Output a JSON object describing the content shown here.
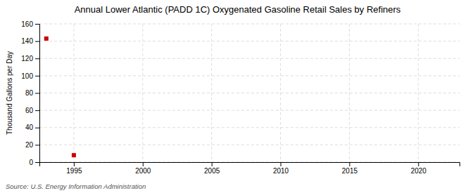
{
  "chart_data": {
    "type": "scatter",
    "title": "Annual Lower Atlantic (PADD 1C) Oxygenated Gasoline Retail Sales by Refiners",
    "ylabel": "Thousand Gallons per Day",
    "annotation": "Source: U.S. Energy Information Administration",
    "x": [
      1993,
      1995
    ],
    "values": [
      143,
      8
    ],
    "color": "#cc0000",
    "marker": "square",
    "xlim": [
      1992.5,
      2023
    ],
    "ylim": [
      0,
      160
    ],
    "xticks": [
      1995,
      2000,
      2005,
      2010,
      2015,
      2020
    ],
    "yticks": [
      0,
      20,
      40,
      60,
      80,
      100,
      120,
      140,
      160
    ],
    "grid": true
  }
}
